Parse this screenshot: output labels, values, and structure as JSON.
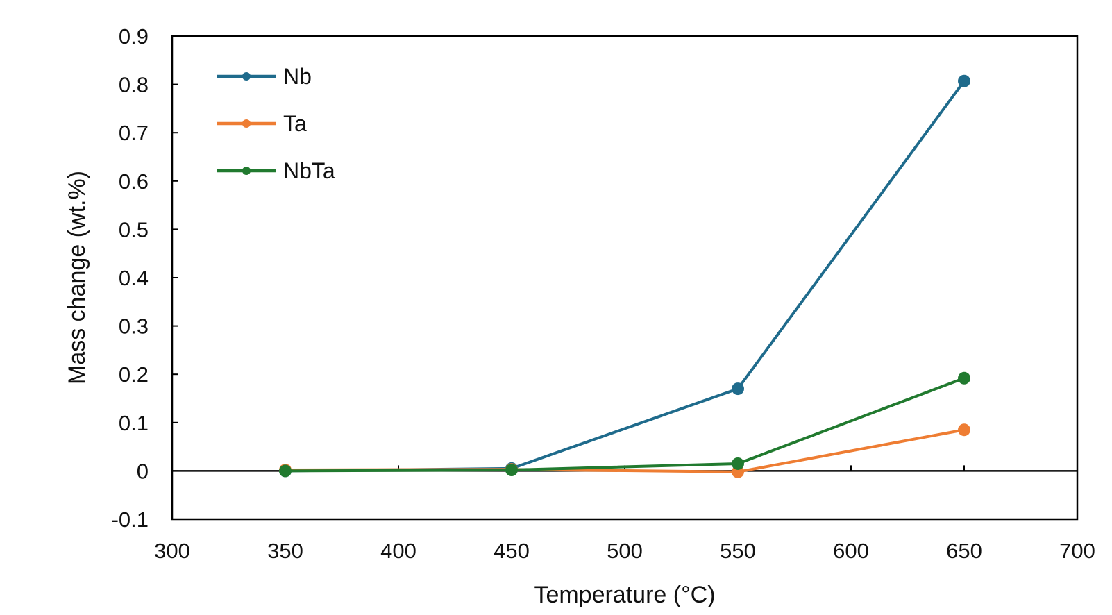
{
  "chart_data": {
    "type": "line",
    "title": "",
    "xlabel": "Temperature (°C)",
    "ylabel": "Mass change (wt.%)",
    "xlim": [
      300,
      700
    ],
    "ylim": [
      -0.1,
      0.9
    ],
    "x_ticks": [
      "300",
      "350",
      "400",
      "450",
      "500",
      "550",
      "600",
      "650",
      "700"
    ],
    "y_ticks": [
      "-0.1",
      "0",
      "0.1",
      "0.2",
      "0.3",
      "0.4",
      "0.5",
      "0.6",
      "0.7",
      "0.8",
      "0.9"
    ],
    "x": [
      350,
      450,
      550,
      650
    ],
    "series": [
      {
        "name": "Nb",
        "color": "#1f6b8c",
        "values": [
          0.0,
          0.005,
          0.17,
          0.807
        ]
      },
      {
        "name": "Ta",
        "color": "#ee7d33",
        "values": [
          0.002,
          0.003,
          -0.002,
          0.085
        ]
      },
      {
        "name": "NbTa",
        "color": "#217a2f",
        "values": [
          0.0,
          0.002,
          0.015,
          0.192
        ]
      }
    ],
    "legend_position": "top-left",
    "grid": false,
    "zero_line": true
  }
}
